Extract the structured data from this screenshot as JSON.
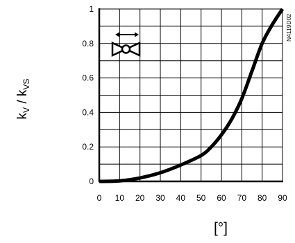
{
  "chart_data": {
    "type": "line",
    "title": "",
    "xlabel": "[°]",
    "ylabel": {
      "base": "k",
      "sub1": "V",
      "separator": " / k",
      "sub2": "VS"
    },
    "xlim": [
      0,
      90
    ],
    "ylim": [
      0,
      1
    ],
    "xticks": [
      0,
      10,
      20,
      30,
      40,
      50,
      60,
      70,
      80,
      90
    ],
    "yticks": [
      0,
      0.2,
      0.4,
      0.6,
      0.8,
      1
    ],
    "xtick_labels": [
      "0",
      "10",
      "20",
      "30",
      "40",
      "50",
      "60",
      "70",
      "80",
      "90"
    ],
    "ytick_labels": [
      "0",
      "0.2",
      "0.4",
      "0.6",
      "0.8",
      "1"
    ],
    "grid": true,
    "series": [
      {
        "x": [
          0,
          10,
          20,
          30,
          40,
          50,
          55,
          60,
          65,
          70,
          75,
          80,
          85,
          90
        ],
        "y": [
          0,
          0.003,
          0.02,
          0.05,
          0.095,
          0.15,
          0.2,
          0.27,
          0.36,
          0.48,
          0.64,
          0.8,
          0.91,
          1.0
        ]
      }
    ],
    "annotations": {
      "doc_code": "N4119D02",
      "icon": "two-way-valve-symbol"
    },
    "colors": {
      "line": "#000000",
      "grid": "#000000",
      "background": "#ffffff"
    }
  }
}
